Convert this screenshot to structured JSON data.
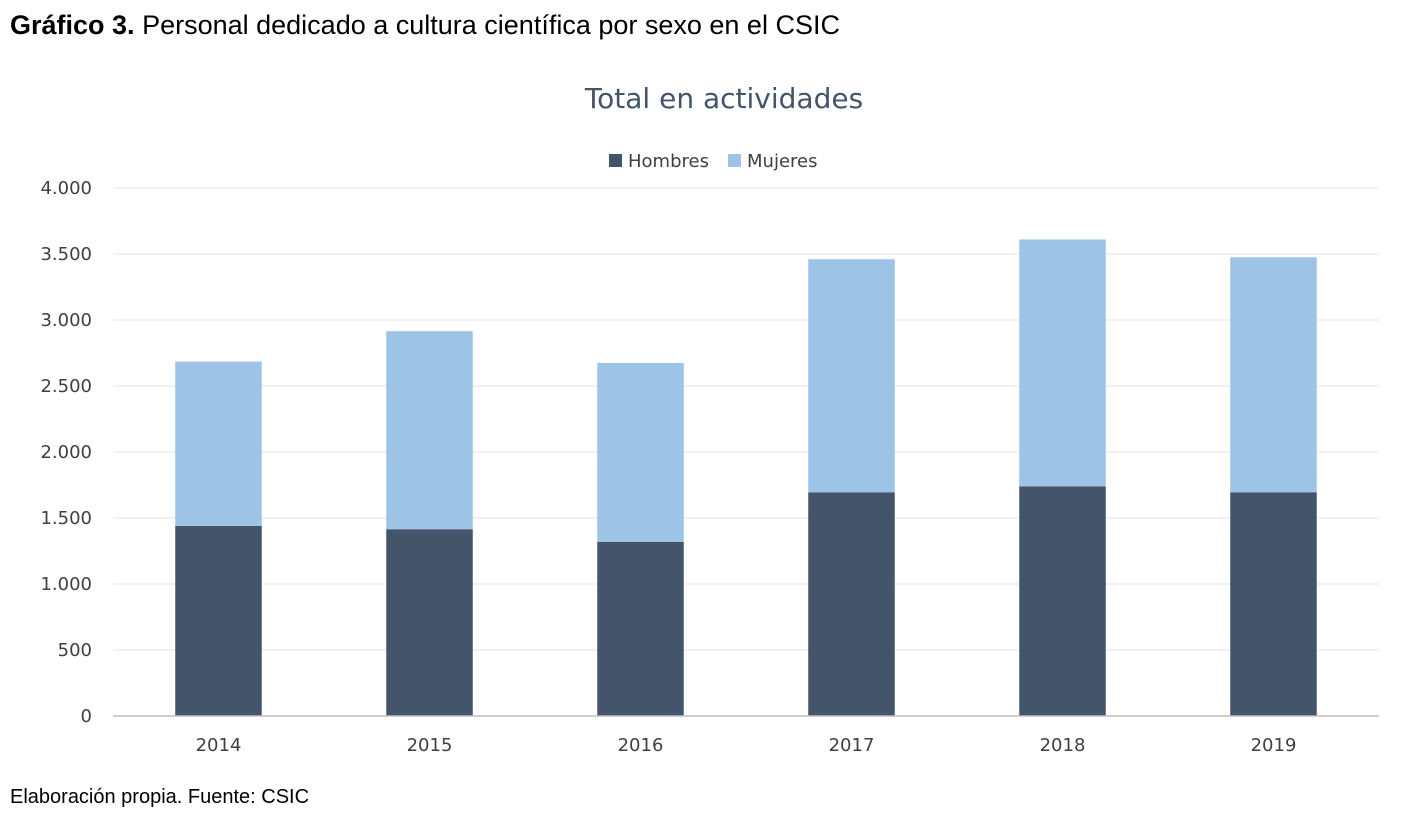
{
  "caption": {
    "number": "Gráfico 3.",
    "text": "Personal dedicado a cultura científica por sexo en el CSIC"
  },
  "source": "Elaboración propia. Fuente: CSIC",
  "chart_data": {
    "type": "bar",
    "stacked": true,
    "title": "Total en actividades",
    "categories": [
      "2014",
      "2015",
      "2016",
      "2017",
      "2018",
      "2019"
    ],
    "series": [
      {
        "name": "Hombres",
        "color": "#44546a",
        "values": [
          1440,
          1415,
          1320,
          1695,
          1740,
          1695
        ]
      },
      {
        "name": "Mujeres",
        "color": "#9dc3e6",
        "values": [
          1245,
          1500,
          1355,
          1765,
          1870,
          1780
        ]
      }
    ],
    "ylim": [
      0,
      4000
    ],
    "yticks": [
      0,
      500,
      1000,
      1500,
      2000,
      2500,
      3000,
      3500,
      4000
    ],
    "ytick_labels": [
      "0",
      "500",
      "1.000",
      "1.500",
      "2.000",
      "2.500",
      "3.000",
      "3.500",
      "4.000"
    ],
    "grid": true,
    "legend": "top-center",
    "xlabel": "",
    "ylabel": ""
  }
}
